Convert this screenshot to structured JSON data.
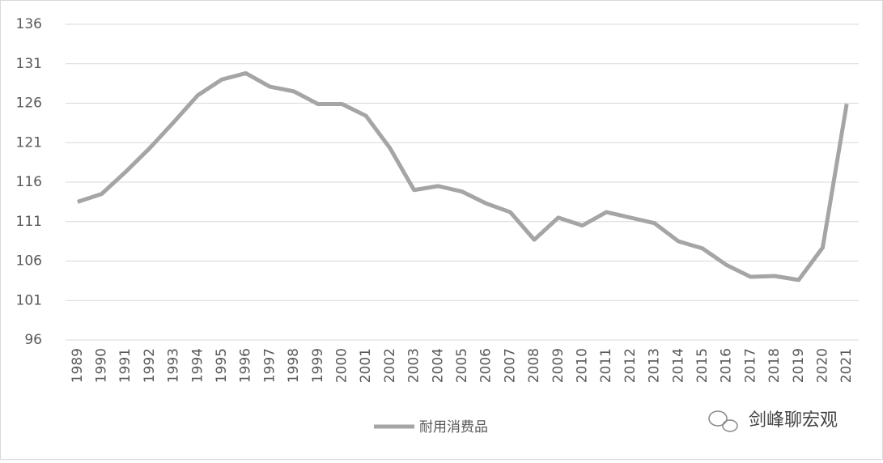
{
  "chart_data": {
    "type": "line",
    "categories": [
      "1989",
      "1990",
      "1991",
      "1992",
      "1993",
      "1994",
      "1995",
      "1996",
      "1997",
      "1998",
      "1999",
      "2000",
      "2001",
      "2002",
      "2003",
      "2004",
      "2005",
      "2006",
      "2007",
      "2008",
      "2009",
      "2010",
      "2011",
      "2012",
      "2013",
      "2014",
      "2015",
      "2016",
      "2017",
      "2018",
      "2019",
      "2020",
      "2021"
    ],
    "series": [
      {
        "name": "耐用消费品",
        "color": "#a5a5a5",
        "values": [
          113.5,
          114.5,
          117.3,
          120.3,
          123.6,
          127.0,
          129.0,
          129.8,
          128.1,
          127.5,
          125.9,
          125.9,
          124.4,
          120.3,
          115.0,
          115.5,
          114.8,
          113.3,
          112.2,
          108.7,
          111.5,
          110.5,
          112.2,
          111.5,
          110.8,
          108.5,
          107.6,
          105.5,
          104.0,
          104.1,
          103.6,
          107.7,
          125.9
        ]
      }
    ],
    "ylim": [
      96,
      136
    ],
    "yticks": [
      96,
      101,
      106,
      111,
      116,
      121,
      126,
      131,
      136
    ],
    "grid": true,
    "legend": "bottom",
    "watermark": "剑峰聊宏观"
  }
}
